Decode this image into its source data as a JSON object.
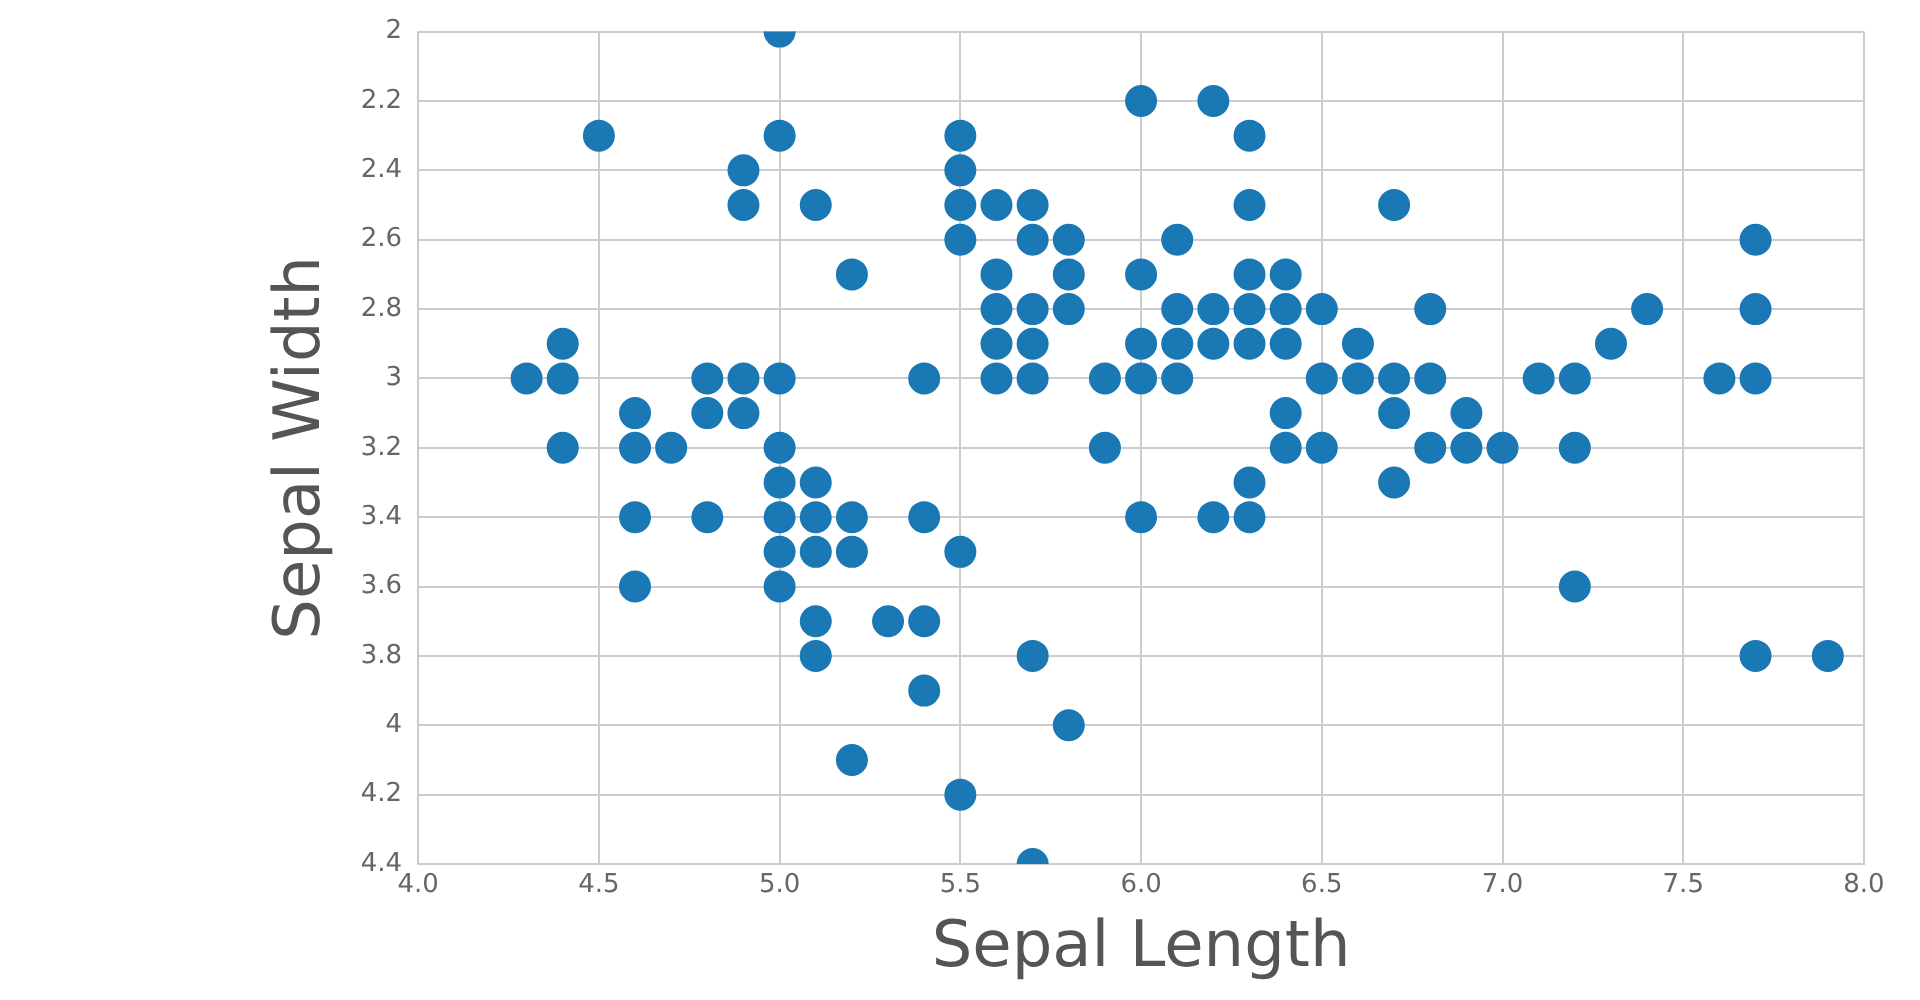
{
  "chart_data": {
    "type": "scatter",
    "xlabel": "Sepal Length",
    "ylabel": "Sepal Width",
    "xlim": [
      4,
      8
    ],
    "xticks": [
      {
        "value": 4,
        "label": "4.0"
      },
      4.5,
      {
        "value": 5,
        "label": "5.0"
      },
      5.5,
      {
        "value": 6,
        "label": "6.0"
      },
      6.5,
      {
        "value": 7,
        "label": "7.0"
      },
      7.5,
      {
        "value": 8,
        "label": "8.0"
      }
    ],
    "ylim": [
      4.4,
      2
    ],
    "yticks": [
      2,
      2.2,
      2.4,
      2.6,
      2.8,
      3,
      3.2,
      3.4,
      3.6,
      3.8,
      4,
      4.2,
      4.4
    ],
    "grid": true,
    "marker": "circle",
    "series": [
      {
        "color": "#1a78b4",
        "x": [
          4.3,
          4.4,
          4.4,
          4.4,
          4.5,
          4.6,
          4.6,
          4.6,
          4.6,
          4.7,
          4.8,
          4.8,
          4.8,
          4.9,
          4.9,
          4.9,
          4.9,
          5.0,
          5.0,
          5.0,
          5.0,
          5.0,
          5.0,
          5.0,
          5.0,
          5.1,
          5.1,
          5.1,
          5.1,
          5.1,
          5.1,
          5.2,
          5.2,
          5.2,
          5.2,
          5.3,
          5.4,
          5.4,
          5.4,
          5.4,
          5.5,
          5.5,
          5.5,
          5.5,
          5.5,
          5.5,
          5.6,
          5.6,
          5.6,
          5.6,
          5.6,
          5.7,
          5.7,
          5.7,
          5.7,
          5.7,
          5.7,
          5.7,
          5.8,
          5.8,
          5.8,
          5.8,
          5.9,
          5.9,
          6.0,
          6.0,
          6.0,
          6.0,
          6.0,
          6.1,
          6.1,
          6.1,
          6.1,
          6.2,
          6.2,
          6.2,
          6.2,
          6.3,
          6.3,
          6.3,
          6.3,
          6.3,
          6.3,
          6.3,
          6.4,
          6.4,
          6.4,
          6.4,
          6.4,
          6.5,
          6.5,
          6.5,
          6.6,
          6.6,
          6.7,
          6.7,
          6.7,
          6.7,
          6.8,
          6.8,
          6.8,
          6.9,
          6.9,
          7.0,
          7.1,
          7.2,
          7.2,
          7.2,
          7.3,
          7.4,
          7.6,
          7.7,
          7.7,
          7.7,
          7.7,
          7.9
        ],
        "values": [
          3.0,
          2.9,
          3.0,
          3.2,
          2.3,
          3.1,
          3.4,
          3.6,
          3.2,
          3.2,
          3.4,
          3.0,
          3.1,
          3.0,
          3.1,
          2.4,
          2.5,
          3.6,
          3.4,
          3.0,
          3.2,
          3.5,
          3.3,
          2.0,
          2.3,
          3.5,
          3.8,
          3.7,
          3.3,
          3.4,
          2.5,
          3.5,
          3.4,
          4.1,
          2.7,
          3.7,
          3.9,
          3.7,
          3.4,
          3.0,
          4.2,
          3.5,
          2.3,
          2.4,
          2.5,
          2.6,
          2.9,
          3.0,
          2.5,
          2.7,
          2.8,
          4.4,
          3.8,
          2.8,
          2.6,
          3.0,
          2.9,
          2.5,
          4.0,
          2.7,
          2.6,
          2.8,
          3.0,
          3.2,
          2.2,
          2.9,
          2.7,
          3.4,
          3.0,
          2.9,
          2.8,
          3.0,
          2.6,
          2.2,
          2.9,
          2.8,
          3.4,
          3.3,
          2.5,
          2.3,
          2.9,
          2.7,
          2.8,
          3.4,
          3.2,
          2.9,
          2.7,
          2.8,
          3.1,
          2.8,
          3.0,
          3.2,
          2.9,
          3.0,
          3.1,
          3.0,
          2.5,
          3.3,
          2.8,
          3.0,
          3.2,
          3.1,
          3.2,
          3.2,
          3.0,
          3.6,
          3.2,
          3.0,
          2.9,
          2.8,
          3.0,
          3.8,
          2.6,
          2.8,
          3.0,
          3.8
        ]
      }
    ]
  }
}
